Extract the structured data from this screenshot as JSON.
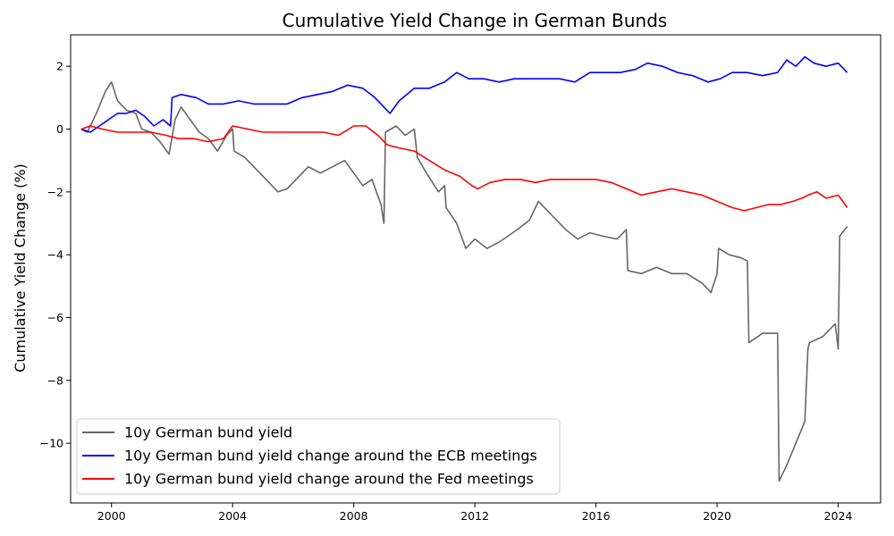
{
  "chart_data": {
    "type": "line",
    "title": "Cumulative Yield Change in German Bunds",
    "xlabel": "",
    "ylabel": "Cumulative Yield Change (%)",
    "xlim": [
      1998.65,
      2025.4
    ],
    "ylim": [
      -11.9,
      3.0
    ],
    "x_ticks": [
      2000,
      2004,
      2008,
      2012,
      2016,
      2020,
      2024
    ],
    "y_ticks": [
      2,
      0,
      -2,
      -4,
      -6,
      -8,
      -10
    ],
    "grid": false,
    "legend_position": "lower-left",
    "series": [
      {
        "name": "10y German bund yield",
        "color": "#666666",
        "points": [
          [
            1999.0,
            0.0
          ],
          [
            1999.2,
            -0.1
          ],
          [
            1999.5,
            0.5
          ],
          [
            1999.8,
            1.2
          ],
          [
            2000.0,
            1.5
          ],
          [
            2000.2,
            0.9
          ],
          [
            2000.5,
            0.6
          ],
          [
            2000.8,
            0.5
          ],
          [
            2001.0,
            0.0
          ],
          [
            2001.3,
            -0.1
          ],
          [
            2001.6,
            -0.4
          ],
          [
            2001.9,
            -0.8
          ],
          [
            2002.1,
            0.3
          ],
          [
            2002.3,
            0.7
          ],
          [
            2002.6,
            0.3
          ],
          [
            2002.9,
            -0.1
          ],
          [
            2003.2,
            -0.3
          ],
          [
            2003.5,
            -0.7
          ],
          [
            2003.8,
            -0.2
          ],
          [
            2004.0,
            0.0
          ],
          [
            2004.05,
            -0.7
          ],
          [
            2004.4,
            -0.9
          ],
          [
            2004.8,
            -1.3
          ],
          [
            2005.1,
            -1.6
          ],
          [
            2005.5,
            -2.0
          ],
          [
            2005.8,
            -1.9
          ],
          [
            2006.1,
            -1.6
          ],
          [
            2006.5,
            -1.2
          ],
          [
            2006.9,
            -1.4
          ],
          [
            2007.3,
            -1.2
          ],
          [
            2007.7,
            -1.0
          ],
          [
            2008.0,
            -1.4
          ],
          [
            2008.3,
            -1.8
          ],
          [
            2008.6,
            -1.6
          ],
          [
            2008.9,
            -2.4
          ],
          [
            2009.0,
            -3.0
          ],
          [
            2009.05,
            -0.1
          ],
          [
            2009.4,
            0.1
          ],
          [
            2009.7,
            -0.2
          ],
          [
            2010.0,
            0.0
          ],
          [
            2010.1,
            -0.9
          ],
          [
            2010.4,
            -1.4
          ],
          [
            2010.8,
            -2.0
          ],
          [
            2011.0,
            -1.8
          ],
          [
            2011.05,
            -2.5
          ],
          [
            2011.4,
            -3.0
          ],
          [
            2011.7,
            -3.8
          ],
          [
            2012.0,
            -3.5
          ],
          [
            2012.4,
            -3.8
          ],
          [
            2012.8,
            -3.6
          ],
          [
            2013.1,
            -3.4
          ],
          [
            2013.4,
            -3.2
          ],
          [
            2013.8,
            -2.9
          ],
          [
            2014.1,
            -2.3
          ],
          [
            2014.6,
            -2.8
          ],
          [
            2015.0,
            -3.2
          ],
          [
            2015.4,
            -3.5
          ],
          [
            2015.8,
            -3.3
          ],
          [
            2016.2,
            -3.4
          ],
          [
            2016.7,
            -3.5
          ],
          [
            2017.0,
            -3.2
          ],
          [
            2017.05,
            -4.5
          ],
          [
            2017.5,
            -4.6
          ],
          [
            2018.0,
            -4.4
          ],
          [
            2018.5,
            -4.6
          ],
          [
            2019.0,
            -4.6
          ],
          [
            2019.5,
            -4.9
          ],
          [
            2019.8,
            -5.2
          ],
          [
            2020.0,
            -4.6
          ],
          [
            2020.05,
            -3.8
          ],
          [
            2020.4,
            -4.0
          ],
          [
            2020.8,
            -4.1
          ],
          [
            2021.0,
            -4.2
          ],
          [
            2021.05,
            -6.8
          ],
          [
            2021.5,
            -6.5
          ],
          [
            2022.0,
            -6.5
          ],
          [
            2022.05,
            -11.2
          ],
          [
            2022.3,
            -10.7
          ],
          [
            2022.6,
            -10.0
          ],
          [
            2022.9,
            -9.3
          ],
          [
            2023.0,
            -7.0
          ],
          [
            2023.05,
            -6.8
          ],
          [
            2023.5,
            -6.6
          ],
          [
            2023.9,
            -6.2
          ],
          [
            2024.0,
            -7.0
          ],
          [
            2024.05,
            -3.4
          ],
          [
            2024.3,
            -3.1
          ]
        ]
      },
      {
        "name": "10y German bund yield change around the ECB meetings",
        "color": "#0000ff",
        "points": [
          [
            1999.0,
            0.0
          ],
          [
            1999.3,
            -0.1
          ],
          [
            1999.6,
            0.1
          ],
          [
            1999.9,
            0.3
          ],
          [
            2000.2,
            0.5
          ],
          [
            2000.5,
            0.5
          ],
          [
            2000.8,
            0.6
          ],
          [
            2001.1,
            0.4
          ],
          [
            2001.4,
            0.1
          ],
          [
            2001.7,
            0.3
          ],
          [
            2001.95,
            0.1
          ],
          [
            2002.0,
            1.0
          ],
          [
            2002.3,
            1.1
          ],
          [
            2002.8,
            1.0
          ],
          [
            2003.2,
            0.8
          ],
          [
            2003.7,
            0.8
          ],
          [
            2004.2,
            0.9
          ],
          [
            2004.7,
            0.8
          ],
          [
            2005.3,
            0.8
          ],
          [
            2005.8,
            0.8
          ],
          [
            2006.3,
            1.0
          ],
          [
            2006.8,
            1.1
          ],
          [
            2007.3,
            1.2
          ],
          [
            2007.8,
            1.4
          ],
          [
            2008.3,
            1.3
          ],
          [
            2008.7,
            1.0
          ],
          [
            2009.0,
            0.7
          ],
          [
            2009.2,
            0.5
          ],
          [
            2009.5,
            0.9
          ],
          [
            2010.0,
            1.3
          ],
          [
            2010.5,
            1.3
          ],
          [
            2011.0,
            1.5
          ],
          [
            2011.4,
            1.8
          ],
          [
            2011.8,
            1.6
          ],
          [
            2012.3,
            1.6
          ],
          [
            2012.8,
            1.5
          ],
          [
            2013.3,
            1.6
          ],
          [
            2013.8,
            1.6
          ],
          [
            2014.3,
            1.6
          ],
          [
            2014.8,
            1.6
          ],
          [
            2015.3,
            1.5
          ],
          [
            2015.8,
            1.8
          ],
          [
            2016.3,
            1.8
          ],
          [
            2016.8,
            1.8
          ],
          [
            2017.3,
            1.9
          ],
          [
            2017.7,
            2.1
          ],
          [
            2018.2,
            2.0
          ],
          [
            2018.7,
            1.8
          ],
          [
            2019.2,
            1.7
          ],
          [
            2019.7,
            1.5
          ],
          [
            2020.1,
            1.6
          ],
          [
            2020.5,
            1.8
          ],
          [
            2021.0,
            1.8
          ],
          [
            2021.5,
            1.7
          ],
          [
            2022.0,
            1.8
          ],
          [
            2022.3,
            2.2
          ],
          [
            2022.6,
            2.0
          ],
          [
            2022.9,
            2.3
          ],
          [
            2023.2,
            2.1
          ],
          [
            2023.6,
            2.0
          ],
          [
            2024.0,
            2.1
          ],
          [
            2024.3,
            1.8
          ]
        ]
      },
      {
        "name": "10y German bund yield change around the Fed meetings",
        "color": "#ff0000",
        "points": [
          [
            1999.0,
            0.0
          ],
          [
            1999.3,
            0.1
          ],
          [
            1999.7,
            0.0
          ],
          [
            2000.2,
            -0.1
          ],
          [
            2000.8,
            -0.1
          ],
          [
            2001.3,
            -0.1
          ],
          [
            2001.8,
            -0.2
          ],
          [
            2002.2,
            -0.3
          ],
          [
            2002.7,
            -0.3
          ],
          [
            2003.2,
            -0.4
          ],
          [
            2003.7,
            -0.3
          ],
          [
            2004.0,
            0.1
          ],
          [
            2004.5,
            0.0
          ],
          [
            2005.0,
            -0.1
          ],
          [
            2005.5,
            -0.1
          ],
          [
            2006.0,
            -0.1
          ],
          [
            2006.5,
            -0.1
          ],
          [
            2007.0,
            -0.1
          ],
          [
            2007.5,
            -0.2
          ],
          [
            2008.0,
            0.1
          ],
          [
            2008.4,
            0.1
          ],
          [
            2008.8,
            -0.2
          ],
          [
            2009.1,
            -0.5
          ],
          [
            2009.5,
            -0.6
          ],
          [
            2010.0,
            -0.7
          ],
          [
            2010.5,
            -1.0
          ],
          [
            2011.0,
            -1.3
          ],
          [
            2011.5,
            -1.5
          ],
          [
            2011.9,
            -1.8
          ],
          [
            2012.1,
            -1.9
          ],
          [
            2012.5,
            -1.7
          ],
          [
            2013.0,
            -1.6
          ],
          [
            2013.5,
            -1.6
          ],
          [
            2014.0,
            -1.7
          ],
          [
            2014.5,
            -1.6
          ],
          [
            2015.0,
            -1.6
          ],
          [
            2015.5,
            -1.6
          ],
          [
            2016.0,
            -1.6
          ],
          [
            2016.5,
            -1.7
          ],
          [
            2017.0,
            -1.9
          ],
          [
            2017.5,
            -2.1
          ],
          [
            2018.0,
            -2.0
          ],
          [
            2018.5,
            -1.9
          ],
          [
            2019.0,
            -2.0
          ],
          [
            2019.5,
            -2.1
          ],
          [
            2020.0,
            -2.3
          ],
          [
            2020.5,
            -2.5
          ],
          [
            2020.9,
            -2.6
          ],
          [
            2021.3,
            -2.5
          ],
          [
            2021.7,
            -2.4
          ],
          [
            2022.1,
            -2.4
          ],
          [
            2022.5,
            -2.3
          ],
          [
            2022.8,
            -2.2
          ],
          [
            2023.0,
            -2.1
          ],
          [
            2023.3,
            -2.0
          ],
          [
            2023.6,
            -2.2
          ],
          [
            2024.0,
            -2.1
          ],
          [
            2024.3,
            -2.5
          ]
        ]
      }
    ]
  }
}
